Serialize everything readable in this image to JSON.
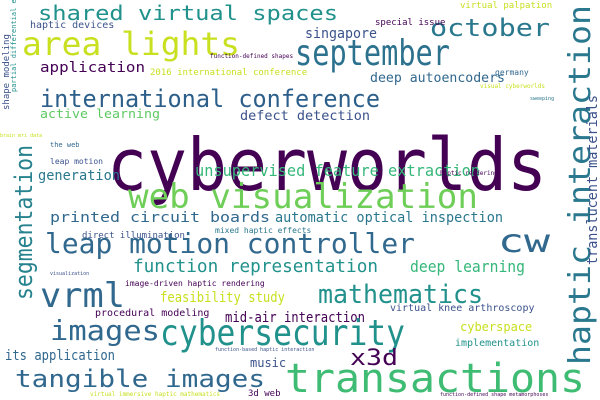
{
  "words": [
    {
      "text": "cyberworlds",
      "color": "#440154"
    },
    {
      "text": "haptic interaction",
      "color": "#2a788e"
    },
    {
      "text": "segmentation",
      "color": "#26828e"
    },
    {
      "text": "translucent materials",
      "color": "#3b528b"
    },
    {
      "text": "shape modeling",
      "color": "#3b528b"
    },
    {
      "text": "partial differential equations",
      "color": "#21918c"
    },
    {
      "text": "haptic devices",
      "color": "#3b528b"
    },
    {
      "text": "shared virtual spaces",
      "color": "#21918c"
    },
    {
      "text": "area lights",
      "color": "#c8e020"
    },
    {
      "text": "september",
      "color": "#2c728e"
    },
    {
      "text": "october",
      "color": "#2a788e"
    },
    {
      "text": "singapore",
      "color": "#3b528b"
    },
    {
      "text": "special issue",
      "color": "#440154"
    },
    {
      "text": "virtual palpation",
      "color": "#c8e020"
    },
    {
      "text": "function-defined shapes",
      "color": "#440154"
    },
    {
      "text": "2016 international conference",
      "color": "#c8e020"
    },
    {
      "text": "germany",
      "color": "#31688e"
    },
    {
      "text": "deep autoencoders",
      "color": "#31688e"
    },
    {
      "text": "visual cyberworlds",
      "color": "#c8e020"
    },
    {
      "text": "application",
      "color": "#440154"
    },
    {
      "text": "international conference",
      "color": "#2c5f8a"
    },
    {
      "text": "active learning",
      "color": "#5ec962"
    },
    {
      "text": "defect detection",
      "color": "#3b528b"
    },
    {
      "text": "sweeping",
      "color": "#2a788e"
    },
    {
      "text": "brain mri data",
      "color": "#c8e020"
    },
    {
      "text": "the web",
      "color": "#31688e"
    },
    {
      "text": "leap motion",
      "color": "#3b528b"
    },
    {
      "text": "unsupervised feature extraction",
      "color": "#35b779"
    },
    {
      "text": "generation",
      "color": "#2a788e"
    },
    {
      "text": "haptic rendering",
      "color": "#440154"
    },
    {
      "text": "web visualization",
      "color": "#6ece58"
    },
    {
      "text": "printed circuit boards",
      "color": "#31688e"
    },
    {
      "text": "automatic optical inspection",
      "color": "#2a788e"
    },
    {
      "text": "cw",
      "color": "#31688e"
    },
    {
      "text": "leap motion controller",
      "color": "#31688e"
    },
    {
      "text": "direct illumination",
      "color": "#3b528b"
    },
    {
      "text": "mixed haptic effects",
      "color": "#2a788e"
    },
    {
      "text": "function representation",
      "color": "#21918c"
    },
    {
      "text": "deep learning",
      "color": "#35b779"
    },
    {
      "text": "visualization",
      "color": "#3b528b"
    },
    {
      "text": "vrml",
      "color": "#31688e"
    },
    {
      "text": "image-driven haptic rendering",
      "color": "#440154"
    },
    {
      "text": "mathematics",
      "color": "#21918c"
    },
    {
      "text": "feasibility study",
      "color": "#c8e020"
    },
    {
      "text": "virtual knee arthroscopy",
      "color": "#3b528b"
    },
    {
      "text": "procedural modeling",
      "color": "#440154"
    },
    {
      "text": "mid-air interaction",
      "color": "#440154"
    },
    {
      "text": "images",
      "color": "#31688e"
    },
    {
      "text": "cybersecurity",
      "color": "#21918c"
    },
    {
      "text": "cyberspace",
      "color": "#c8e020"
    },
    {
      "text": "implementation",
      "color": "#21918c"
    },
    {
      "text": "its application",
      "color": "#31688e"
    },
    {
      "text": "x3d",
      "color": "#440154"
    },
    {
      "text": "music",
      "color": "#3b528b"
    },
    {
      "text": "function-based haptic interaction",
      "color": "#3b528b"
    },
    {
      "text": "tangible images",
      "color": "#31688e"
    },
    {
      "text": "transactions",
      "color": "#3fbc73"
    },
    {
      "text": "3d web",
      "color": "#440154"
    },
    {
      "text": "virtual immersive haptic mathematics",
      "color": "#c8e020"
    },
    {
      "text": "function-defined shape metamorphoses",
      "color": "#440154"
    }
  ]
}
